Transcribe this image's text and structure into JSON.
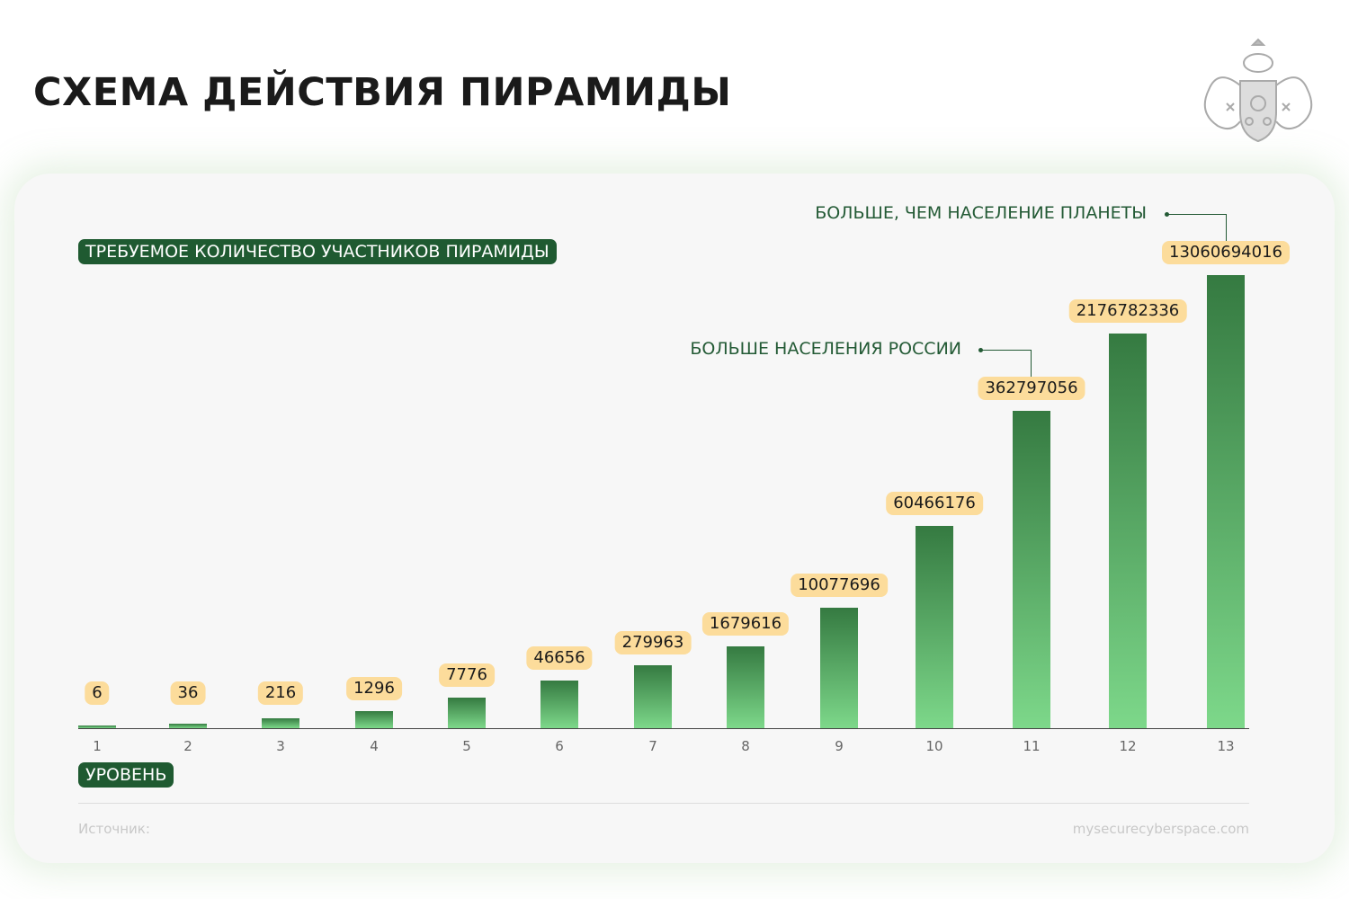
{
  "header": {
    "title": "СХЕМА ДЕЙСТВИЯ ПИРАМИДЫ",
    "logo": "coat-of-arms"
  },
  "chart_data": {
    "type": "bar",
    "title": "ТРЕБУЕМОЕ КОЛИЧЕСТВО УЧАСТНИКОВ ПИРАМИДЫ",
    "xlabel": "УРОВЕНЬ",
    "categories": [
      "1",
      "2",
      "3",
      "4",
      "5",
      "6",
      "7",
      "8",
      "9",
      "10",
      "11",
      "12",
      "13"
    ],
    "values": [
      6,
      36,
      216,
      1296,
      7776,
      46656,
      279963,
      1679616,
      10077696,
      60466176,
      362797056,
      2176782336,
      13060694016
    ],
    "data_labels": [
      "6",
      "36",
      "216",
      "1296",
      "7776",
      "46656",
      "279963",
      "1679616",
      "10077696",
      "60466176",
      "362797056",
      "2176782336",
      "13060694016"
    ],
    "annotations": [
      {
        "text": "БОЛЬШЕ НАСЕЛЕНИЯ РОССИИ",
        "category": "11"
      },
      {
        "text": "БОЛЬШЕ, ЧЕМ НАСЕЛЕНИЕ ПЛАНЕТЫ",
        "category": "13"
      }
    ],
    "bar_color_top": "#357a41",
    "bar_color_bottom": "#7dd88a",
    "label_bg": "#fcdc9b",
    "grid": false
  },
  "footer": {
    "source_label": "Источник:",
    "site": "mysecurecyberspace.com"
  }
}
